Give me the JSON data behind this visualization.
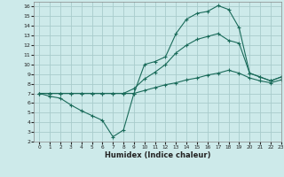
{
  "background_color": "#cdeaea",
  "grid_color": "#a8cccc",
  "line_color": "#1a6b5a",
  "xlabel": "Humidex (Indice chaleur)",
  "xlim": [
    -0.5,
    23
  ],
  "ylim": [
    2,
    16.5
  ],
  "xticks": [
    0,
    1,
    2,
    3,
    4,
    5,
    6,
    7,
    8,
    9,
    10,
    11,
    12,
    13,
    14,
    15,
    16,
    17,
    18,
    19,
    20,
    21,
    22,
    23
  ],
  "yticks": [
    2,
    3,
    4,
    5,
    6,
    7,
    8,
    9,
    10,
    11,
    12,
    13,
    14,
    15,
    16
  ],
  "line1_x": [
    0,
    1,
    2,
    3,
    4,
    5,
    6,
    7,
    8,
    9,
    10,
    11,
    12,
    13,
    14,
    15,
    16,
    17,
    18,
    19,
    20,
    21,
    22,
    23
  ],
  "line1_y": [
    7.0,
    6.7,
    6.5,
    5.8,
    5.2,
    4.7,
    4.2,
    2.5,
    3.2,
    7.0,
    10.0,
    10.3,
    10.8,
    13.2,
    14.7,
    15.3,
    15.5,
    16.1,
    15.7,
    13.8,
    9.1,
    8.7,
    8.3,
    8.7
  ],
  "line2_x": [
    0,
    1,
    2,
    3,
    4,
    5,
    6,
    7,
    8,
    9,
    10,
    11,
    12,
    13,
    14,
    15,
    16,
    17,
    18,
    19,
    20,
    21,
    22,
    23
  ],
  "line2_y": [
    7.0,
    7.0,
    7.0,
    7.0,
    7.0,
    7.0,
    7.0,
    7.0,
    7.0,
    7.5,
    8.5,
    9.2,
    10.0,
    11.2,
    12.0,
    12.6,
    12.9,
    13.2,
    12.5,
    12.2,
    9.1,
    8.7,
    8.3,
    8.7
  ],
  "line3_x": [
    0,
    1,
    2,
    3,
    4,
    5,
    6,
    7,
    8,
    9,
    10,
    11,
    12,
    13,
    14,
    15,
    16,
    17,
    18,
    19,
    20,
    21,
    22,
    23
  ],
  "line3_y": [
    7.0,
    7.0,
    7.0,
    7.0,
    7.0,
    7.0,
    7.0,
    7.0,
    7.0,
    7.0,
    7.3,
    7.6,
    7.9,
    8.1,
    8.4,
    8.6,
    8.9,
    9.1,
    9.4,
    9.1,
    8.6,
    8.3,
    8.1,
    8.4
  ]
}
